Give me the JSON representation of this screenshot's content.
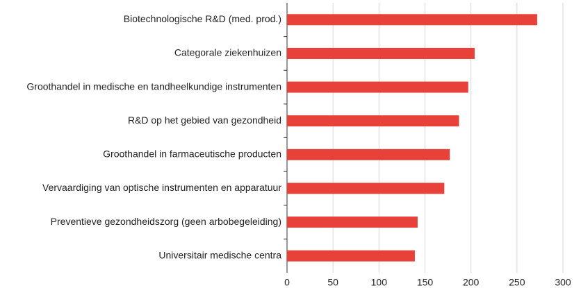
{
  "chart_data": {
    "type": "bar",
    "orientation": "horizontal",
    "categories": [
      "Biotechnologische R&D (med. prod.)",
      "Categorale ziekenhuizen",
      "Groothandel in medische en tandheelkundige instrumenten",
      "R&D op het gebied van gezondheid",
      "Groothandel in farmaceutische producten",
      "Vervaardiging van optische instrumenten en apparatuur",
      "Preventieve gezondheidszorg (geen arbobegeleiding)",
      "Universitair medische centra"
    ],
    "values": [
      272,
      204,
      197,
      187,
      177,
      171,
      142,
      139
    ],
    "color": "#e8413a",
    "xlim": [
      0,
      300
    ],
    "xticks": [
      0,
      50,
      100,
      150,
      200,
      250,
      300
    ],
    "grid": true
  }
}
